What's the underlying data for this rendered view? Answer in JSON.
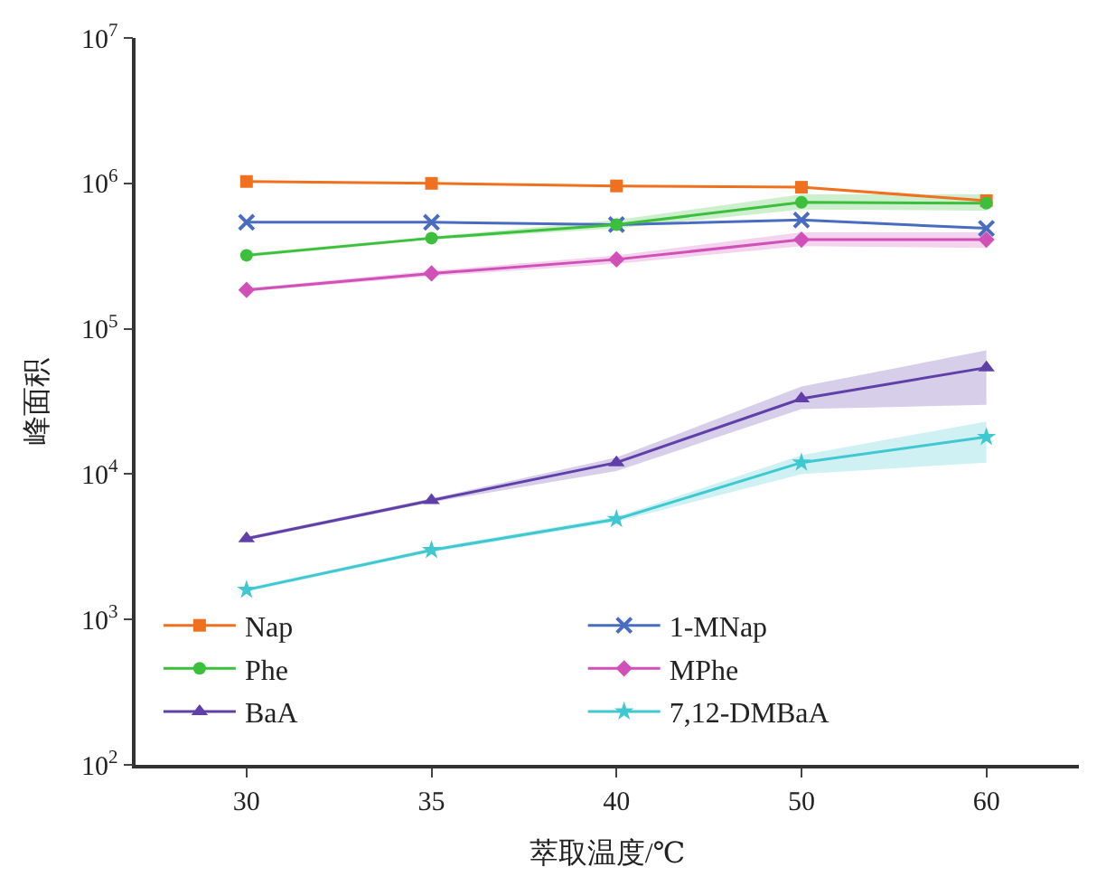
{
  "chart_data": {
    "type": "line",
    "xlabel": "萃取温度/℃",
    "ylabel": "峰面积",
    "categories": [
      "30",
      "35",
      "40",
      "50",
      "60"
    ],
    "series": [
      {
        "name": "Nap",
        "color": "#f07020",
        "marker": "square",
        "values": [
          1030000,
          1000000,
          960000,
          940000,
          760000
        ]
      },
      {
        "name": "1-MNap",
        "color": "#4a6cc0",
        "marker": "cross",
        "values": [
          540000,
          540000,
          520000,
          560000,
          490000
        ]
      },
      {
        "name": "Phe",
        "color": "#3cbf3c",
        "marker": "circle",
        "values": [
          320000,
          420000,
          520000,
          740000,
          730000
        ],
        "lower": [
          310000,
          410000,
          490000,
          660000,
          650000
        ],
        "upper": [
          330000,
          430000,
          560000,
          840000,
          840000
        ]
      },
      {
        "name": "MPhe",
        "color": "#d050b8",
        "marker": "diamond",
        "values": [
          185000,
          240000,
          300000,
          410000,
          410000
        ],
        "lower": [
          180000,
          230000,
          280000,
          370000,
          360000
        ],
        "upper": [
          190000,
          250000,
          320000,
          460000,
          460000
        ]
      },
      {
        "name": "BaA",
        "color": "#6040a8",
        "marker": "triangle",
        "values": [
          3600,
          6600,
          12000,
          33000,
          54000
        ],
        "lower": [
          3500,
          6400,
          10500,
          28000,
          30000
        ],
        "upper": [
          3700,
          6800,
          13000,
          40000,
          71000
        ]
      },
      {
        "name": "7,12-DMBaA",
        "color": "#40c8d0",
        "marker": "star",
        "values": [
          1600,
          3000,
          4900,
          12000,
          18000
        ],
        "lower": [
          1550,
          2900,
          4700,
          10000,
          12000
        ],
        "upper": [
          1650,
          3100,
          5100,
          13500,
          23000
        ]
      }
    ],
    "log": "y",
    "ylim": [
      100,
      10000000
    ],
    "yticks": [
      {
        "value": 100,
        "label": "10$^{2}$"
      },
      {
        "value": 1000,
        "label": "10$^{3}$"
      },
      {
        "value": 10000,
        "label": "10$^{4}$"
      },
      {
        "value": 100000,
        "label": "10$^{5}$"
      },
      {
        "value": 1000000,
        "label": "10$^{6}$"
      },
      {
        "value": 10000000,
        "label": "10$^{7}$"
      }
    ],
    "legend": "bottom left",
    "line_style": "solid"
  }
}
